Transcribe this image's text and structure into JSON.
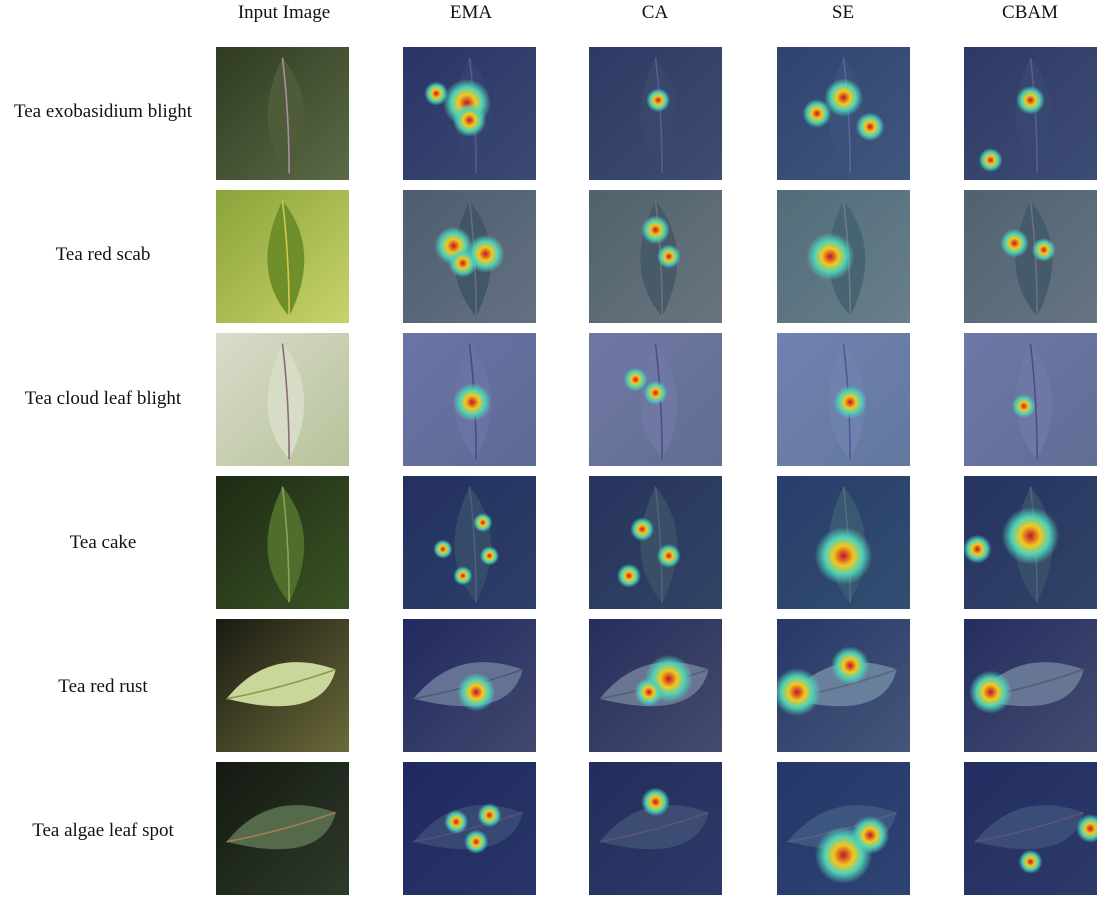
{
  "columns": [
    "Input Image",
    "EMA",
    "CA",
    "SE",
    "CBAM"
  ],
  "rows": [
    "Tea exobasidium blight",
    "Tea red scab",
    "Tea cloud leaf blight",
    "Tea cake",
    "Tea red rust",
    "Tea algae leaf spot"
  ]
}
